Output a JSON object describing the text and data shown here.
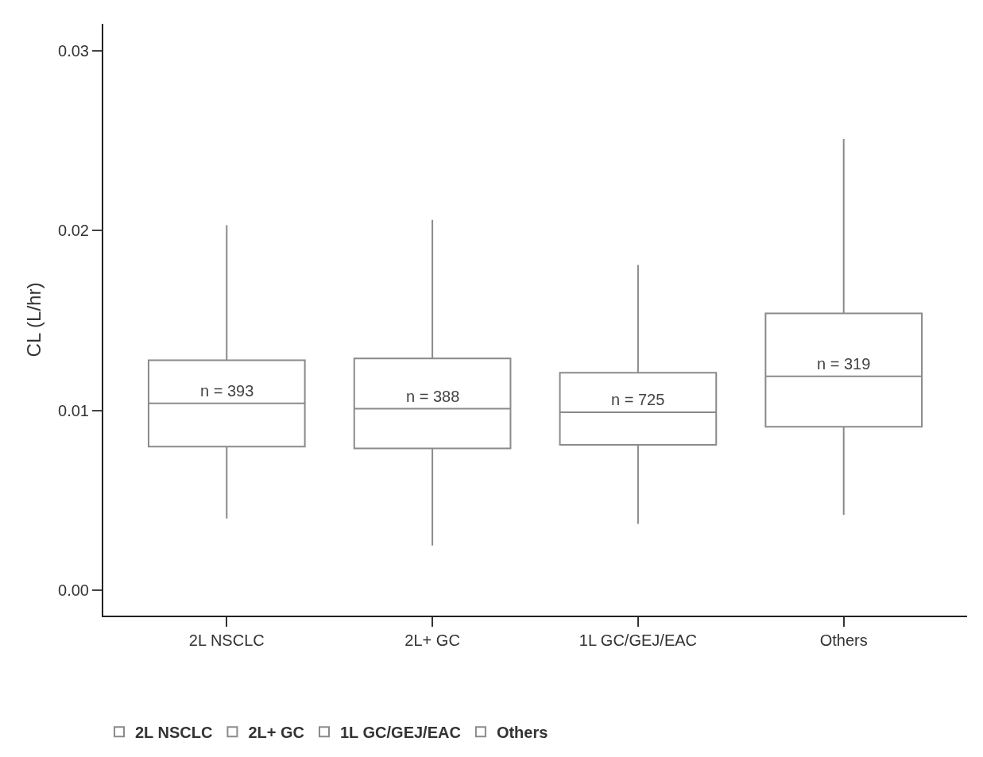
{
  "chart_data": {
    "type": "box",
    "ylabel": "CL (L/hr)",
    "categories": [
      "2L NSCLC",
      "2L+ GC",
      "1L GC/GEJ/EAC",
      "Others"
    ],
    "series": [
      {
        "name": "2L NSCLC",
        "color": "#8a8a8a",
        "boxes": [
          {
            "low": 0.004,
            "q1": 0.008,
            "median": 0.0104,
            "q3": 0.0128,
            "high": 0.0203
          },
          null,
          null,
          null
        ]
      },
      {
        "name": "2L+ GC",
        "color": "#8a8a8a",
        "boxes": [
          null,
          {
            "low": 0.0025,
            "q1": 0.0079,
            "median": 0.0101,
            "q3": 0.0129,
            "high": 0.0206
          },
          null,
          null
        ]
      },
      {
        "name": "1L GC/GEJ/EAC",
        "color": "#8a8a8a",
        "boxes": [
          null,
          null,
          {
            "low": 0.0037,
            "q1": 0.0081,
            "median": 0.0099,
            "q3": 0.0121,
            "high": 0.0181
          },
          null
        ]
      },
      {
        "name": "Others",
        "color": "#8a8a8a",
        "boxes": [
          null,
          null,
          null,
          {
            "low": 0.0042,
            "q1": 0.0091,
            "median": 0.0119,
            "q3": 0.0154,
            "high": 0.0251
          }
        ]
      }
    ],
    "annotations": [
      {
        "text": "n = 393",
        "x": "2L NSCLC",
        "y": 0.0104
      },
      {
        "text": "n = 388",
        "x": "2L+ GC",
        "y": 0.0101
      },
      {
        "text": "n = 725",
        "x": "1L GC/GEJ/EAC",
        "y": 0.0099
      },
      {
        "text": "n = 319",
        "x": "Others",
        "y": 0.0119
      }
    ],
    "ylim": [
      -0.0014,
      0.0315
    ],
    "yticks": [
      {
        "value": 0,
        "label": "0.00"
      },
      0.01,
      0.02,
      0.03
    ],
    "legend": "bottom"
  }
}
